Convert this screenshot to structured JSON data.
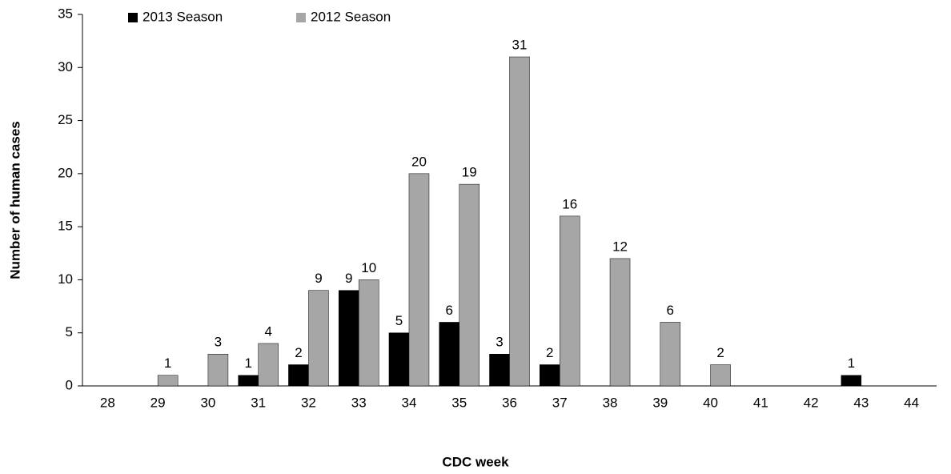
{
  "chart_data": {
    "type": "bar",
    "x_label": "CDC week",
    "y_label": "Number of human cases",
    "categories": [
      "28",
      "29",
      "30",
      "31",
      "32",
      "33",
      "34",
      "35",
      "36",
      "37",
      "38",
      "39",
      "40",
      "41",
      "42",
      "43",
      "44"
    ],
    "series": [
      {
        "name": "2013 Season",
        "color": "#000000",
        "values": [
          null,
          null,
          null,
          1,
          2,
          9,
          5,
          6,
          3,
          2,
          null,
          null,
          null,
          null,
          null,
          1,
          null
        ]
      },
      {
        "name": "2012 Season",
        "color": "#a6a6a6",
        "values": [
          null,
          1,
          3,
          4,
          9,
          10,
          20,
          19,
          31,
          16,
          12,
          6,
          2,
          null,
          null,
          null,
          null
        ]
      }
    ],
    "ylim": [
      0,
      35
    ],
    "yticks": [
      0,
      5,
      10,
      15,
      20,
      25,
      30,
      35
    ],
    "legend": "top-left",
    "data_labels": true
  }
}
